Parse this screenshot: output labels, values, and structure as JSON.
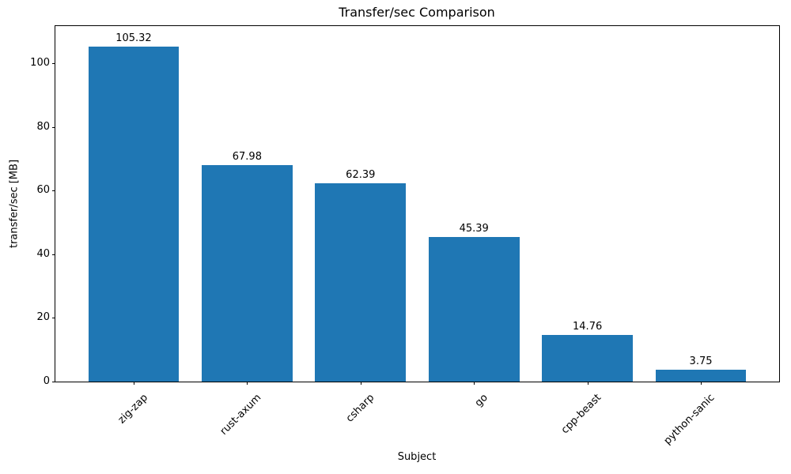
{
  "chart_data": {
    "type": "bar",
    "title": "Transfer/sec Comparison",
    "xlabel": "Subject",
    "ylabel": "transfer/sec [MB]",
    "categories": [
      "zig-zap",
      "rust-axum",
      "csharp",
      "go",
      "cpp-beast",
      "python-sanic"
    ],
    "values": [
      105.32,
      67.98,
      62.39,
      45.39,
      14.76,
      3.75
    ],
    "value_labels": [
      "105.32",
      "67.98",
      "62.39",
      "45.39",
      "14.76",
      "3.75"
    ],
    "yticks": [
      0,
      20,
      40,
      60,
      80,
      100
    ],
    "ylim": [
      0,
      111.7
    ],
    "xtick_rotation_deg": 45,
    "bar_color": "#1f77b4",
    "text_color": "#000000",
    "spine_color": "#000000",
    "grid": false,
    "legend": null
  }
}
